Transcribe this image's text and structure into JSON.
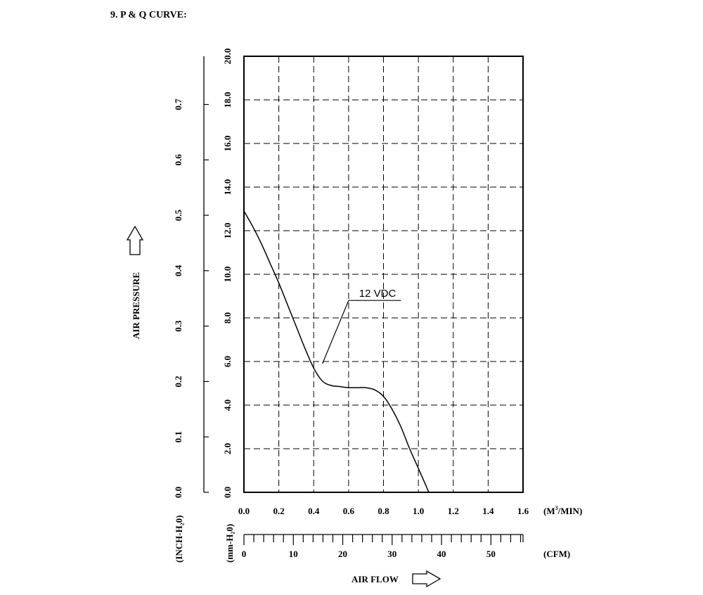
{
  "page_title": "9. P & Q CURVE:",
  "chart_data": {
    "type": "line",
    "title": "",
    "x_axes": {
      "primary": {
        "label": "(M³/MIN)",
        "unit_main": "(M",
        "unit_sup": "3",
        "unit_tail": "/MIN)",
        "range": [
          0.0,
          1.6
        ],
        "ticks": [
          "0.0",
          "0.2",
          "0.4",
          "0.6",
          "0.8",
          "1.0",
          "1.2",
          "1.4",
          "1.6"
        ]
      },
      "secondary": {
        "label": "(CFM)",
        "range": [
          0,
          56.5
        ],
        "ticks": [
          "0",
          "10",
          "20",
          "30",
          "40",
          "50"
        ],
        "minor_step": 2
      }
    },
    "y_axes": {
      "primary": {
        "label": "(mm-H₂0)",
        "range": [
          0.0,
          20.0
        ],
        "ticks": [
          "0.0",
          "2.0",
          "4.0",
          "6.0",
          "8.0",
          "10.0",
          "12.0",
          "14.0",
          "16.0",
          "18.0",
          "20.0"
        ]
      },
      "secondary": {
        "label": "(INCH-H₂0)",
        "range": [
          0.0,
          0.787
        ],
        "ticks": [
          "0.0",
          "0.1",
          "0.2",
          "0.3",
          "0.4",
          "0.5",
          "0.6",
          "0.7"
        ]
      }
    },
    "y_title": "AIR PRESSURE",
    "x_title": "AIR FLOW",
    "grid": "dashed",
    "series": [
      {
        "name": "12 VDC",
        "color": "#000000",
        "x": [
          0.0,
          0.05,
          0.1,
          0.15,
          0.2,
          0.25,
          0.3,
          0.35,
          0.4,
          0.45,
          0.5,
          0.55,
          0.6,
          0.65,
          0.7,
          0.75,
          0.8,
          0.85,
          0.9,
          0.95,
          1.0,
          1.06
        ],
        "y": [
          12.9,
          12.2,
          11.4,
          10.5,
          9.6,
          8.6,
          7.6,
          6.6,
          5.7,
          5.1,
          4.9,
          4.85,
          4.8,
          4.8,
          4.8,
          4.7,
          4.4,
          3.8,
          3.0,
          2.0,
          1.1,
          0.0
        ]
      }
    ],
    "annotation": {
      "text": "12 VDC",
      "points_to": [
        0.45,
        5.9
      ]
    }
  }
}
